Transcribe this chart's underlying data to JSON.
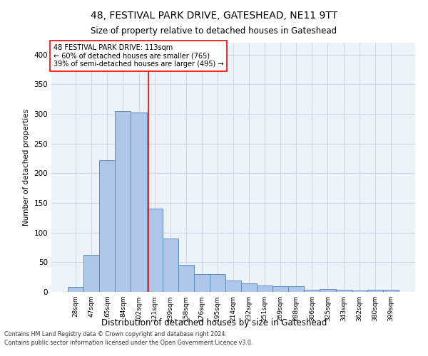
{
  "title": "48, FESTIVAL PARK DRIVE, GATESHEAD, NE11 9TT",
  "subtitle": "Size of property relative to detached houses in Gateshead",
  "xlabel": "Distribution of detached houses by size in Gateshead",
  "ylabel": "Number of detached properties",
  "bar_labels": [
    "28sqm",
    "47sqm",
    "65sqm",
    "84sqm",
    "102sqm",
    "121sqm",
    "139sqm",
    "158sqm",
    "176sqm",
    "195sqm",
    "214sqm",
    "232sqm",
    "251sqm",
    "269sqm",
    "288sqm",
    "306sqm",
    "325sqm",
    "343sqm",
    "362sqm",
    "380sqm",
    "399sqm"
  ],
  "bar_values": [
    8,
    63,
    222,
    305,
    303,
    140,
    90,
    46,
    30,
    30,
    19,
    14,
    11,
    10,
    10,
    4,
    5,
    4,
    3,
    4,
    4
  ],
  "bar_color": "#aec6e8",
  "bar_edge_color": "#5a8fc0",
  "grid_color": "#d0d8e8",
  "background_color": "#eef2f9",
  "annotation_line1": "48 FESTIVAL PARK DRIVE: 113sqm",
  "annotation_line2": "← 60% of detached houses are smaller (765)",
  "annotation_line3": "39% of semi-detached houses are larger (495) →",
  "red_line_x": 4.6,
  "ylim": [
    0,
    420
  ],
  "yticks": [
    0,
    50,
    100,
    150,
    200,
    250,
    300,
    350,
    400
  ],
  "footnote1": "Contains HM Land Registry data © Crown copyright and database right 2024.",
  "footnote2": "Contains public sector information licensed under the Open Government Licence v3.0."
}
